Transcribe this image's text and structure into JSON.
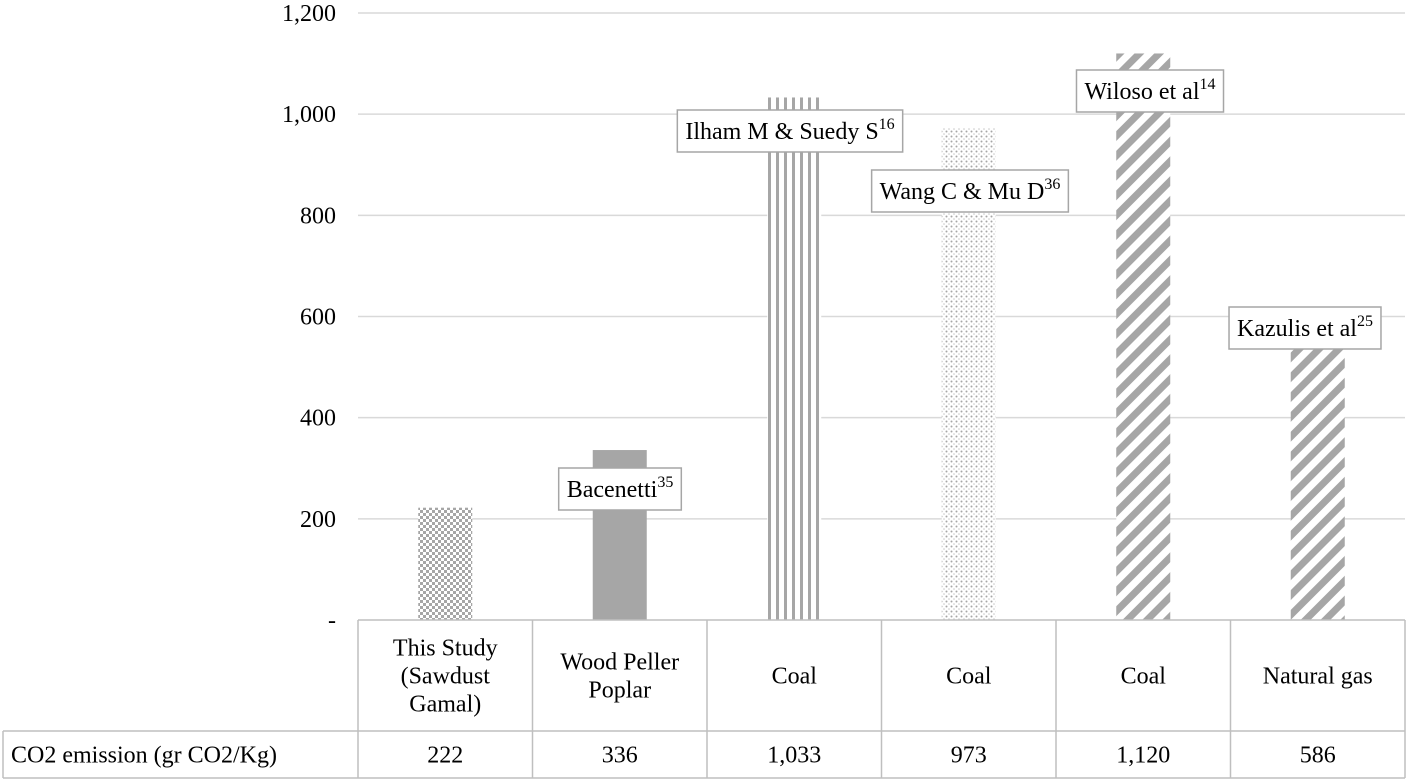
{
  "chart_data": {
    "type": "bar",
    "categories": [
      [
        "This Study",
        "(Sawdust",
        "Gamal)"
      ],
      [
        "Wood Peller",
        "Poplar"
      ],
      [
        "Coal"
      ],
      [
        "Coal"
      ],
      [
        "Coal"
      ],
      [
        "Natural gas"
      ]
    ],
    "values": [
      222,
      336,
      1033,
      973,
      1120,
      586
    ],
    "value_labels": [
      "222",
      "336",
      "1,033",
      "973",
      "1,120",
      "586"
    ],
    "table_row_label": "CO2 emission (gr CO2/Kg)",
    "ylim": [
      0,
      1200
    ],
    "yticks": [
      0,
      200,
      400,
      600,
      800,
      1000,
      1200
    ],
    "ytick_labels": [
      "-",
      "200",
      "400",
      "600",
      "800",
      "1,000",
      "1,200"
    ],
    "grid": true,
    "annotations": [
      {
        "text": "",
        "sup": ""
      },
      {
        "text": "Bacenetti",
        "sup": "35"
      },
      {
        "text": "Ilham M & Suedy S",
        "sup": "16"
      },
      {
        "text": "Wang C & Mu D",
        "sup": "36"
      },
      {
        "text": "Wiloso et al",
        "sup": "14"
      },
      {
        "text": "Kazulis et al",
        "sup": "25"
      }
    ],
    "patterns": [
      "checker",
      "solid",
      "vertical",
      "dots",
      "diagonal",
      "diagonal"
    ]
  },
  "colors": {
    "bar": "#a6a6a6",
    "grid": "#d9d9d9",
    "table": "#bfbfbf",
    "box": "#a6a6a6"
  }
}
